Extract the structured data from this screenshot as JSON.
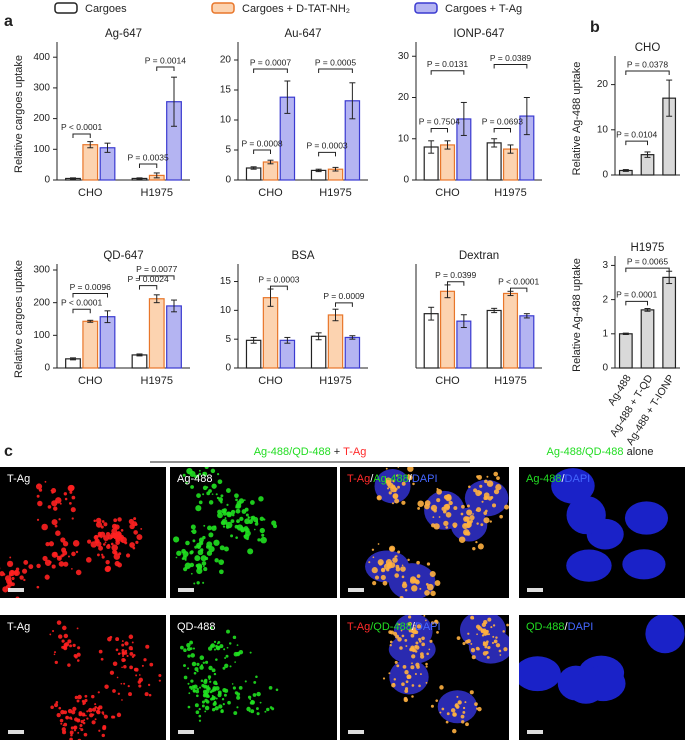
{
  "panel_labels": [
    "a",
    "b",
    "c"
  ],
  "legend": [
    {
      "name": "Cargoes",
      "color": "#ffffff",
      "edge": "#222222"
    },
    {
      "name": "Cargoes + D-TAT-NH₂",
      "color": "#fcd3b0",
      "edge": "#e8762a"
    },
    {
      "name": "Cargoes + T-Ag",
      "color": "#b4b4f2",
      "edge": "#3a3ad0"
    }
  ],
  "chart_data": [
    {
      "type": "bar",
      "title": "Ag-647",
      "ylabel": "Relative cargoes uptake",
      "categories": [
        "CHO",
        "H1975"
      ],
      "series": [
        {
          "values": [
            5,
            5
          ],
          "errors": [
            2,
            2
          ]
        },
        {
          "values": [
            115,
            15
          ],
          "errors": [
            10,
            8
          ]
        },
        {
          "values": [
            105,
            255
          ],
          "errors": [
            15,
            80
          ]
        }
      ],
      "ylim": [
        0,
        430
      ],
      "yticks": [
        0,
        100,
        200,
        300,
        400
      ],
      "annotations": [
        "P < 0.0001",
        "P = 0.0035",
        "P = 0.0014"
      ]
    },
    {
      "type": "bar",
      "title": "Au-647",
      "categories": [
        "CHO",
        "H1975"
      ],
      "series": [
        {
          "values": [
            2,
            1.6
          ],
          "errors": [
            0.2,
            0.2
          ]
        },
        {
          "values": [
            3,
            1.8
          ],
          "errors": [
            0.3,
            0.3
          ]
        },
        {
          "values": [
            13.8,
            13.2
          ],
          "errors": [
            2.7,
            3
          ]
        }
      ],
      "ylim": [
        0,
        22
      ],
      "yticks": [
        0,
        5,
        10,
        15,
        20
      ],
      "annotations": [
        "P = 0.0008",
        "P = 0.0007",
        "P = 0.0003",
        "P = 0.0005"
      ]
    },
    {
      "type": "bar",
      "title": "IONP-647",
      "categories": [
        "CHO",
        "H1975"
      ],
      "series": [
        {
          "values": [
            8,
            9
          ],
          "errors": [
            1.5,
            1
          ]
        },
        {
          "values": [
            8.5,
            7.5
          ],
          "errors": [
            1,
            1
          ]
        },
        {
          "values": [
            14.8,
            15.5
          ],
          "errors": [
            4,
            4.5
          ]
        }
      ],
      "ylim": [
        0,
        32
      ],
      "yticks": [
        0,
        10,
        20,
        30
      ],
      "annotations": [
        "P = 0.7504",
        "P = 0.0131",
        "P = 0.0693",
        "P = 0.0389"
      ]
    },
    {
      "type": "bar",
      "title": "QD-647",
      "ylabel": "Relative cargoes uptake",
      "categories": [
        "CHO",
        "H1975"
      ],
      "series": [
        {
          "values": [
            28,
            40
          ],
          "errors": [
            3,
            3
          ]
        },
        {
          "values": [
            143,
            212
          ],
          "errors": [
            3,
            12
          ]
        },
        {
          "values": [
            157,
            190
          ],
          "errors": [
            18,
            18
          ]
        }
      ],
      "ylim": [
        0,
        300
      ],
      "yticks": [
        0,
        100,
        200,
        300
      ],
      "annotations": [
        "P < 0.0001",
        "P = 0.0096",
        "P = 0.0024",
        "P = 0.0077"
      ]
    },
    {
      "type": "bar",
      "title": "BSA",
      "categories": [
        "CHO",
        "H1975"
      ],
      "series": [
        {
          "values": [
            4.8,
            5.5
          ],
          "errors": [
            0.5,
            0.6
          ]
        },
        {
          "values": [
            12.2,
            9.2
          ],
          "errors": [
            1.5,
            1
          ]
        },
        {
          "values": [
            4.8,
            5.3
          ],
          "errors": [
            0.5,
            0.3
          ]
        }
      ],
      "ylim": [
        0,
        17
      ],
      "yticks": [
        0,
        5,
        10,
        15
      ],
      "annotations": [
        "P = 0.0003",
        "P = 0.0009"
      ]
    },
    {
      "type": "bar",
      "title": "Dextran",
      "categories": [
        "CHO",
        "H1975"
      ],
      "series": [
        {
          "values": [
            2.55,
            2.7
          ],
          "errors": [
            0.3,
            0.1
          ]
        },
        {
          "values": [
            3.6,
            3.5
          ],
          "errors": [
            0.3,
            0.1
          ]
        },
        {
          "values": [
            2.2,
            2.45
          ],
          "errors": [
            0.3,
            0.1
          ]
        }
      ],
      "ylim": [
        0,
        4.6
      ],
      "yticks": [],
      "annotations": [
        "P = 0.0399",
        "P < 0.0001"
      ]
    },
    {
      "type": "bar",
      "title": "CHO",
      "ylabel": "Relative Ag-488 uptake",
      "categories": [
        null,
        null,
        null
      ],
      "values": [
        1,
        4.5,
        17
      ],
      "errors": [
        0.2,
        0.6,
        4
      ],
      "color": "#d9d9d9",
      "ylim": [
        0,
        25
      ],
      "yticks": [
        0,
        10,
        20
      ],
      "annotations": [
        "P = 0.0104",
        "P = 0.0378"
      ]
    },
    {
      "type": "bar",
      "title": "H1975",
      "ylabel": "Relative Ag-488 uptake",
      "categories": [
        "Ag-488",
        "Ag-488 + T-QD",
        "Ag-488 + T-IONP"
      ],
      "values": [
        1,
        1.7,
        2.65
      ],
      "errors": [
        0.02,
        0.04,
        0.18
      ],
      "color": "#d9d9d9",
      "ylim": [
        0,
        3.1
      ],
      "yticks": [
        0,
        1,
        2,
        3
      ],
      "annotations": [
        "P = 0.0001",
        "P = 0.0065"
      ]
    }
  ],
  "microscopy": {
    "header": [
      "Ag-488/QD-488",
      " + ",
      "T-Ag"
    ],
    "header_alone": [
      "Ag-488/QD-488",
      " alone"
    ],
    "rows": [
      [
        [
          "T-Ag"
        ],
        [
          "Ag-488"
        ],
        [
          "T-Ag",
          "/",
          "Ag-488",
          "/",
          "DAPI"
        ],
        [
          "Ag-488",
          "/",
          "DAPI"
        ]
      ],
      [
        [
          "T-Ag"
        ],
        [
          "QD-488"
        ],
        [
          "T-Ag",
          "/",
          "QD-488",
          "/",
          "DAPI"
        ],
        [
          "QD-488",
          "/",
          "DAPI"
        ]
      ]
    ]
  }
}
